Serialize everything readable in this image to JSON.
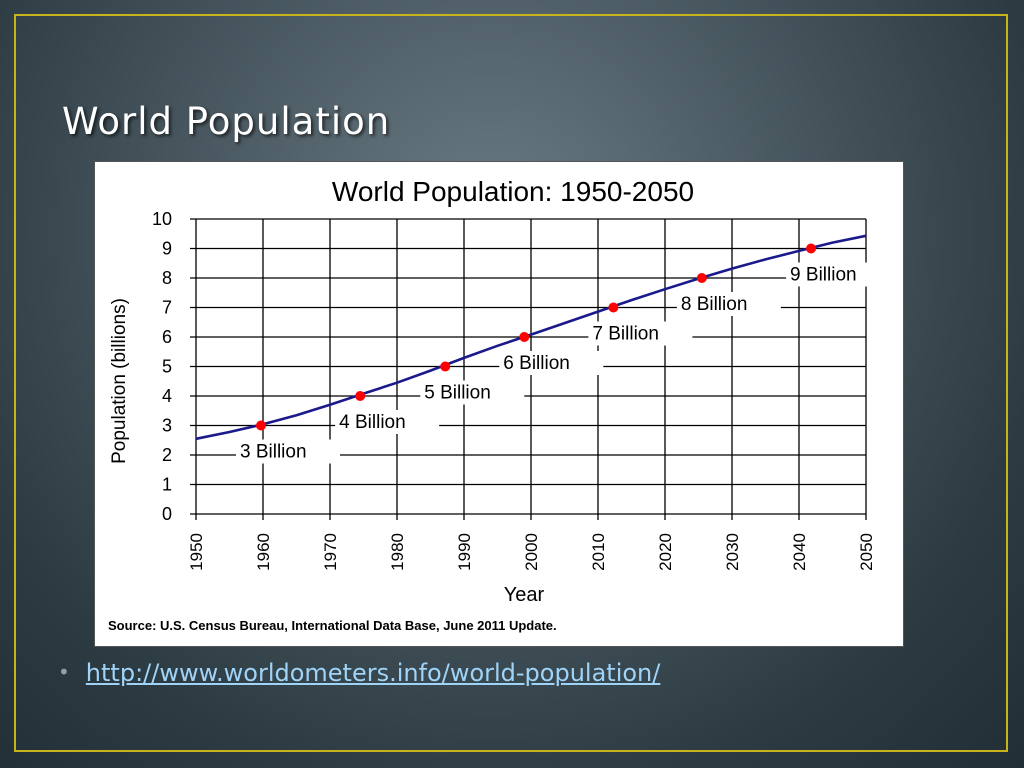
{
  "slide": {
    "title": "World Population",
    "bullet_link": "http://www.worldometers.info/world-population/",
    "frame_color": "#c9b31b",
    "link_color": "#9fd3f7"
  },
  "chart_data": {
    "type": "line",
    "title": "World Population: 1950-2050",
    "xlabel": "Year",
    "ylabel": "Population (billions)",
    "source": "Source: U.S. Census Bureau, International Data Base, June 2011 Update.",
    "xlim": [
      1950,
      2050
    ],
    "ylim": [
      0,
      10
    ],
    "x_ticks": [
      1950,
      1960,
      1970,
      1980,
      1990,
      2000,
      2010,
      2020,
      2030,
      2040,
      2050
    ],
    "y_ticks": [
      0,
      1,
      2,
      3,
      4,
      5,
      6,
      7,
      8,
      9,
      10
    ],
    "grid": true,
    "line_color": "#1a1a8c",
    "marker_color": "#ff0000",
    "series": [
      {
        "x": [
          1950,
          1955,
          1960,
          1965,
          1970,
          1975,
          1980,
          1985,
          1990,
          1995,
          2000,
          2005,
          2010,
          2015,
          2020,
          2025,
          2030,
          2035,
          2040,
          2045,
          2050
        ],
        "values": [
          2.55,
          2.78,
          3.04,
          3.35,
          3.7,
          4.08,
          4.45,
          4.86,
          5.29,
          5.7,
          6.08,
          6.47,
          6.86,
          7.25,
          7.62,
          7.98,
          8.32,
          8.63,
          8.92,
          9.2,
          9.43
        ]
      }
    ],
    "milestones": [
      {
        "x": 1959.7,
        "y": 3,
        "label": "3 Billion"
      },
      {
        "x": 1974.5,
        "y": 4,
        "label": "4 Billion"
      },
      {
        "x": 1987.2,
        "y": 5,
        "label": "5 Billion"
      },
      {
        "x": 1999.0,
        "y": 6,
        "label": "6 Billion"
      },
      {
        "x": 2012.3,
        "y": 7,
        "label": "7 Billion"
      },
      {
        "x": 2025.5,
        "y": 8,
        "label": "8 Billion"
      },
      {
        "x": 2041.8,
        "y": 9,
        "label": "9 Billion"
      }
    ]
  }
}
